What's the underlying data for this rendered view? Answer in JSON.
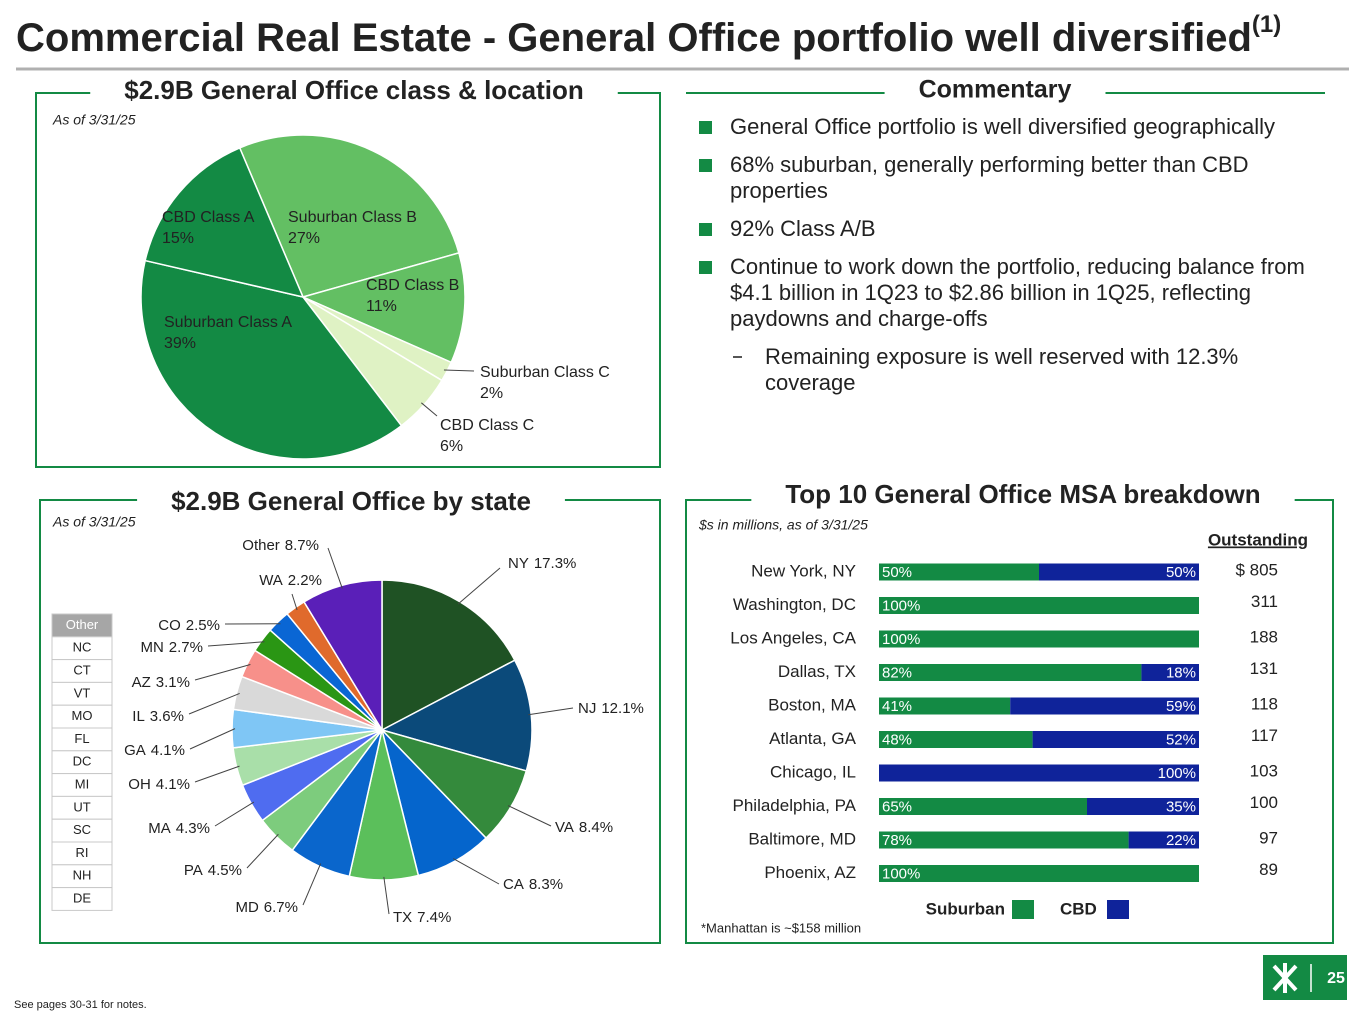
{
  "title": "Commercial Real Estate - General Office portfolio well diversified",
  "title_note": "(1)",
  "chart_data": [
    {
      "type": "pie",
      "title": "$2.9B General Office class & location",
      "subtitle": "As of 3/31/25",
      "categories": [
        "Suburban Class B",
        "CBD Class B",
        "Suburban Class C",
        "CBD Class C",
        "Suburban Class A",
        "CBD Class A"
      ],
      "values": [
        27,
        11,
        2,
        6,
        39,
        15
      ],
      "value_labels": [
        "27%",
        "11%",
        "2%",
        "6%",
        "39%",
        "15%"
      ],
      "colors": [
        "#63bf63",
        "#63bf63",
        "#dff2c4",
        "#dff2c4",
        "#138a44",
        "#138a44"
      ]
    },
    {
      "type": "pie",
      "title": "$2.9B General Office by state",
      "subtitle": "As of 3/31/25",
      "categories": [
        "NY",
        "NJ",
        "VA",
        "CA",
        "TX",
        "MD",
        "PA",
        "MA",
        "OH",
        "GA",
        "IL",
        "AZ",
        "MN",
        "CO",
        "WA",
        "Other"
      ],
      "values": [
        17.3,
        12.1,
        8.4,
        8.3,
        7.4,
        6.7,
        4.5,
        4.3,
        4.1,
        4.1,
        3.6,
        3.1,
        2.7,
        2.5,
        2.2,
        8.7
      ],
      "value_labels": [
        "17.3%",
        "12.1%",
        "8.4%",
        "8.3%",
        "7.4%",
        "6.7%",
        "4.5%",
        "4.3%",
        "4.1%",
        "4.1%",
        "3.6%",
        "3.1%",
        "2.7%",
        "2.5%",
        "2.2%",
        "8.7%"
      ],
      "colors": [
        "#1f5224",
        "#0b4a7a",
        "#348a3c",
        "#0565cc",
        "#5bbf5b",
        "#0a66cc",
        "#7dcc7d",
        "#4f6cf0",
        "#a9dfa9",
        "#7fc6f5",
        "#d9d9d9",
        "#f7908a",
        "#2a9614",
        "#0a66d4",
        "#e06a2c",
        "#5a1fb8"
      ],
      "other_states": [
        "Other",
        "NC",
        "CT",
        "VT",
        "MO",
        "FL",
        "DC",
        "MI",
        "UT",
        "SC",
        "RI",
        "NH",
        "DE"
      ]
    },
    {
      "type": "stacked_bar_h",
      "title": "Top 10 General Office MSA breakdown",
      "subtitle": "$s in millions, as of 3/31/25",
      "categories": [
        "New York, NY",
        "Washington, DC",
        "Los Angeles, CA",
        "Dallas, TX",
        "Boston, MA",
        "Atlanta, GA",
        "Chicago, IL",
        "Philadelphia, PA",
        "Baltimore, MD",
        "Phoenix, AZ"
      ],
      "series": [
        {
          "name": "Suburban",
          "color": "#138a44",
          "values": [
            50,
            100,
            100,
            82,
            41,
            48,
            0,
            65,
            78,
            100
          ],
          "value_labels": [
            "50%",
            "100%",
            "100%",
            "82%",
            "41%",
            "48%",
            null,
            "65%",
            "78%",
            "100%"
          ]
        },
        {
          "name": "CBD",
          "color": "#0f239a",
          "values": [
            50,
            0,
            0,
            18,
            59,
            52,
            100,
            35,
            22,
            0
          ],
          "value_labels": [
            "50%",
            null,
            null,
            "18%",
            "59%",
            "52%",
            "100%",
            "35%",
            "22%",
            null
          ]
        }
      ],
      "xlim": [
        0,
        100
      ],
      "outstanding": {
        "label": "Outstanding",
        "values": [
          805,
          311,
          188,
          131,
          118,
          117,
          103,
          100,
          97,
          89
        ],
        "value_labels": [
          "$ 805",
          "311",
          "188",
          "131",
          "118",
          "117",
          "103",
          "100",
          "97",
          "89"
        ]
      },
      "note": "*Manhattan is ~$158 million"
    }
  ],
  "commentary": {
    "title": "Commentary",
    "bullets": [
      {
        "text": "General Office portfolio is well diversified geographically"
      },
      {
        "text": "68% suburban, generally performing better than CBD properties"
      },
      {
        "text": "92% Class A/B"
      },
      {
        "text": "Continue to work down the portfolio, reducing balance from $4.1 billion in 1Q23 to $2.86 billion in 1Q25, reflecting paydowns and charge-offs"
      },
      {
        "text": "Remaining exposure is well reserved with 12.3% coverage",
        "sub": true
      }
    ]
  },
  "footer": "See pages 30-31 for notes.",
  "page_number": "25"
}
